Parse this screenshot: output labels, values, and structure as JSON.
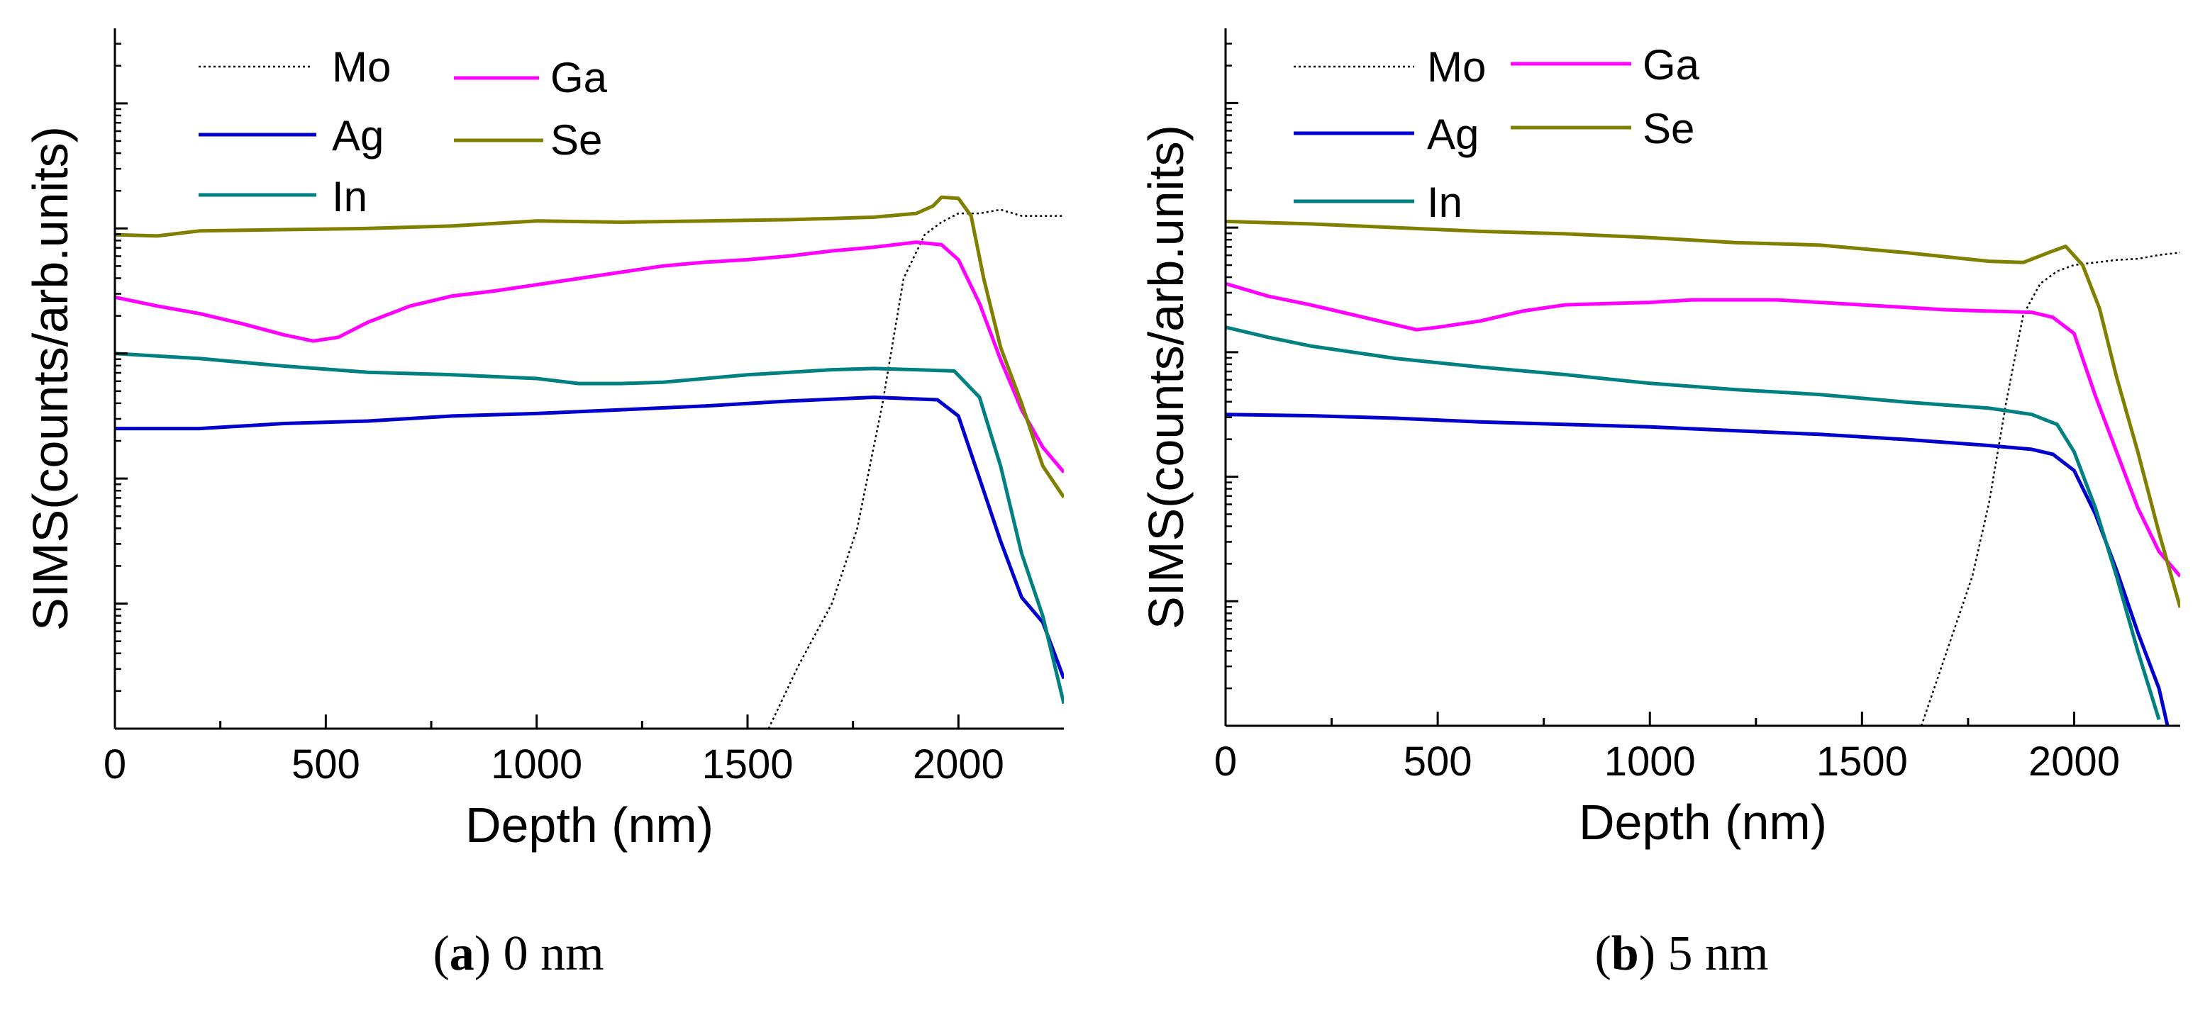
{
  "figure": {
    "captions": [
      {
        "prefix": "(",
        "letter": "a",
        "suffix": ") 0 nm"
      },
      {
        "prefix": "(",
        "letter": "b",
        "suffix": ") 5 nm"
      }
    ]
  },
  "chart_data": [
    {
      "type": "line",
      "panel": "a",
      "caption": "(a) 0 nm",
      "xlabel": "Depth (nm)",
      "ylabel": "SIMS(counts/arb.units)",
      "xlim": [
        0,
        2250
      ],
      "xticks": [
        0,
        500,
        1000,
        1500,
        2000
      ],
      "xtick_labels": [
        "0",
        "500",
        "1000",
        "1500",
        "2000"
      ],
      "ylim": [
        0,
        5.6
      ],
      "yscale_note": "log scale, no tick labels",
      "legend": [
        "Mo",
        "Ga",
        "Ag",
        "Se",
        "In"
      ],
      "series": [
        {
          "name": "Mo",
          "color": "#000000",
          "style": "dotted",
          "x": [
            1550,
            1620,
            1700,
            1760,
            1820,
            1870,
            1920,
            1960,
            2000,
            2050,
            2100,
            2150,
            2200,
            2250
          ],
          "y": [
            0.0,
            0.5,
            1.0,
            1.6,
            2.6,
            3.6,
            3.95,
            4.05,
            4.12,
            4.12,
            4.15,
            4.1,
            4.1,
            4.1
          ]
        },
        {
          "name": "Ga",
          "color": "#ff00ff",
          "style": "solid",
          "x": [
            0,
            100,
            200,
            300,
            400,
            470,
            530,
            600,
            700,
            800,
            900,
            1000,
            1100,
            1200,
            1300,
            1400,
            1500,
            1600,
            1700,
            1800,
            1900,
            1960,
            2000,
            2050,
            2100,
            2150,
            2200,
            2250
          ],
          "y": [
            3.45,
            3.38,
            3.32,
            3.24,
            3.15,
            3.1,
            3.13,
            3.25,
            3.38,
            3.46,
            3.5,
            3.55,
            3.6,
            3.65,
            3.7,
            3.73,
            3.75,
            3.78,
            3.82,
            3.85,
            3.89,
            3.87,
            3.75,
            3.4,
            2.95,
            2.55,
            2.25,
            2.05
          ]
        },
        {
          "name": "Ag",
          "color": "#0000cc",
          "style": "solid",
          "x": [
            0,
            200,
            400,
            600,
            800,
            1000,
            1200,
            1400,
            1600,
            1800,
            1950,
            2000,
            2050,
            2100,
            2150,
            2200,
            2250
          ],
          "y": [
            2.4,
            2.4,
            2.44,
            2.46,
            2.5,
            2.52,
            2.55,
            2.58,
            2.62,
            2.65,
            2.63,
            2.5,
            2.0,
            1.5,
            1.05,
            0.85,
            0.4
          ]
        },
        {
          "name": "Se",
          "color": "#808000",
          "style": "solid",
          "x": [
            0,
            100,
            200,
            400,
            600,
            800,
            1000,
            1200,
            1400,
            1600,
            1700,
            1800,
            1900,
            1940,
            1960,
            2000,
            2030,
            2060,
            2100,
            2150,
            2200,
            2250
          ],
          "y": [
            3.95,
            3.94,
            3.98,
            3.99,
            4.0,
            4.02,
            4.06,
            4.05,
            4.06,
            4.07,
            4.08,
            4.09,
            4.12,
            4.18,
            4.25,
            4.24,
            4.1,
            3.6,
            3.05,
            2.6,
            2.1,
            1.85
          ]
        },
        {
          "name": "In",
          "color": "#008080",
          "style": "solid",
          "x": [
            0,
            200,
            400,
            600,
            800,
            1000,
            1100,
            1200,
            1300,
            1400,
            1500,
            1600,
            1700,
            1800,
            1900,
            1990,
            2050,
            2100,
            2150,
            2200,
            2250
          ],
          "y": [
            3.0,
            2.96,
            2.9,
            2.85,
            2.83,
            2.8,
            2.76,
            2.76,
            2.77,
            2.8,
            2.83,
            2.85,
            2.87,
            2.88,
            2.87,
            2.86,
            2.65,
            2.1,
            1.4,
            0.9,
            0.2
          ]
        }
      ]
    },
    {
      "type": "line",
      "panel": "b",
      "caption": "(b) 5 nm",
      "xlabel": "Depth (nm)",
      "ylabel": "SIMS(counts/arb.units)",
      "xlim": [
        0,
        2250
      ],
      "xticks": [
        0,
        500,
        1000,
        1500,
        2000
      ],
      "xtick_labels": [
        "0",
        "500",
        "1000",
        "1500",
        "2000"
      ],
      "ylim": [
        0,
        5.6
      ],
      "yscale_note": "log scale, no tick labels",
      "legend": [
        "Mo",
        "Ga",
        "Ag",
        "Se",
        "In"
      ],
      "series": [
        {
          "name": "Mo",
          "color": "#000000",
          "style": "dotted",
          "x": [
            1640,
            1700,
            1760,
            1800,
            1840,
            1880,
            1920,
            1960,
            2000,
            2050,
            2100,
            2150,
            2200,
            2250
          ],
          "y": [
            0.0,
            0.6,
            1.2,
            1.8,
            2.6,
            3.3,
            3.55,
            3.65,
            3.7,
            3.72,
            3.74,
            3.75,
            3.78,
            3.8
          ]
        },
        {
          "name": "Ga",
          "color": "#ff00ff",
          "style": "solid",
          "x": [
            0,
            100,
            200,
            300,
            400,
            450,
            500,
            600,
            700,
            800,
            900,
            1000,
            1100,
            1200,
            1300,
            1400,
            1500,
            1600,
            1700,
            1800,
            1900,
            1950,
            2000,
            2050,
            2100,
            2150,
            2200,
            2250
          ],
          "y": [
            3.55,
            3.45,
            3.38,
            3.3,
            3.22,
            3.18,
            3.2,
            3.25,
            3.33,
            3.38,
            3.39,
            3.4,
            3.42,
            3.42,
            3.42,
            3.4,
            3.38,
            3.36,
            3.34,
            3.33,
            3.32,
            3.28,
            3.15,
            2.65,
            2.2,
            1.75,
            1.4,
            1.2
          ]
        },
        {
          "name": "Ag",
          "color": "#0000cc",
          "style": "solid",
          "x": [
            0,
            200,
            400,
            600,
            800,
            1000,
            1200,
            1400,
            1600,
            1800,
            1900,
            1950,
            2000,
            2050,
            2100,
            2150,
            2200,
            2220
          ],
          "y": [
            2.5,
            2.49,
            2.47,
            2.44,
            2.42,
            2.4,
            2.37,
            2.34,
            2.3,
            2.25,
            2.22,
            2.18,
            2.05,
            1.7,
            1.25,
            0.75,
            0.3,
            0.0
          ]
        },
        {
          "name": "Se",
          "color": "#808000",
          "style": "solid",
          "x": [
            0,
            200,
            400,
            600,
            800,
            1000,
            1200,
            1400,
            1600,
            1800,
            1880,
            1940,
            1980,
            2020,
            2060,
            2100,
            2150,
            2200,
            2250
          ],
          "y": [
            4.05,
            4.03,
            4.0,
            3.97,
            3.95,
            3.92,
            3.88,
            3.86,
            3.8,
            3.73,
            3.72,
            3.8,
            3.85,
            3.7,
            3.35,
            2.8,
            2.2,
            1.55,
            0.95
          ]
        },
        {
          "name": "In",
          "color": "#008080",
          "style": "solid",
          "x": [
            0,
            100,
            200,
            400,
            600,
            800,
            1000,
            1200,
            1400,
            1600,
            1800,
            1900,
            1960,
            2000,
            2050,
            2100,
            2150,
            2200
          ],
          "y": [
            3.2,
            3.12,
            3.05,
            2.95,
            2.88,
            2.82,
            2.75,
            2.7,
            2.66,
            2.6,
            2.55,
            2.5,
            2.42,
            2.2,
            1.75,
            1.2,
            0.6,
            0.05
          ]
        }
      ]
    }
  ]
}
